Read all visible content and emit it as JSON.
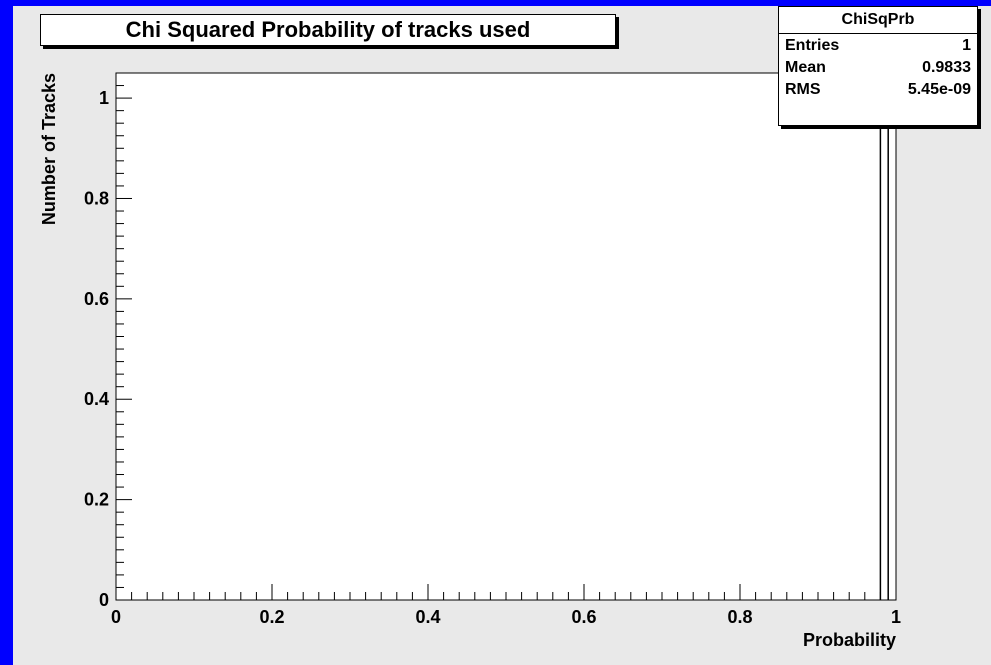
{
  "chart_data": {
    "type": "bar",
    "title": "Chi Squared Probability of tracks used",
    "xlabel": "Probability",
    "ylabel": "Number of Tracks",
    "xlim": [
      0,
      1
    ],
    "ylim": [
      0,
      1.05
    ],
    "x_ticks": [
      "0",
      "0.2",
      "0.4",
      "0.6",
      "0.8",
      "1"
    ],
    "y_ticks": [
      "0",
      "0.2",
      "0.4",
      "0.6",
      "0.8",
      "1"
    ],
    "bins": [
      {
        "x0": 0.98,
        "x1": 0.99,
        "value": 1
      }
    ],
    "stats": {
      "name": "ChiSqPrb",
      "entries_label": "Entries",
      "entries": "1",
      "mean_label": "Mean",
      "mean": "0.9833",
      "rms_label": "RMS",
      "rms": "5.45e-09"
    }
  },
  "colors": {
    "border": "#0000ff",
    "canvas": "#e9e9e9",
    "plot_area": "#ffffff",
    "line": "#000000"
  }
}
